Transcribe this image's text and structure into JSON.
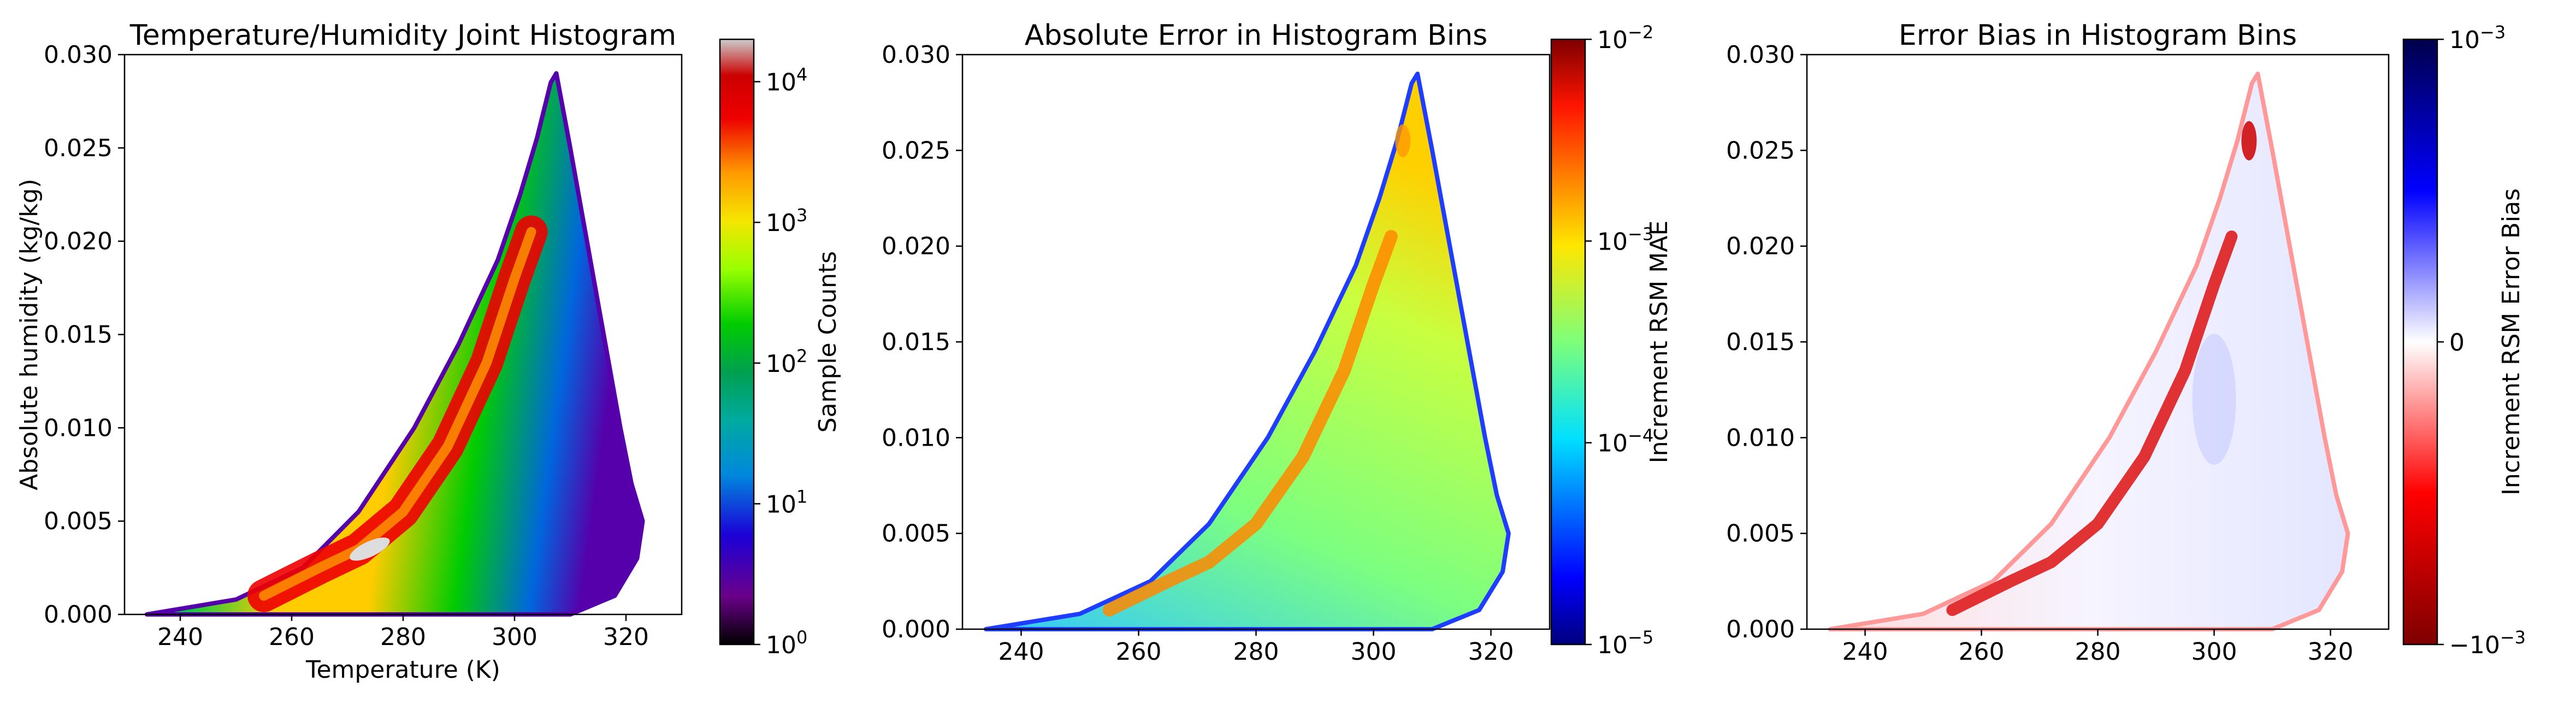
{
  "figure": {
    "background": "#ffffff"
  },
  "chart_data": [
    {
      "type": "heatmap",
      "title": "Temperature/Humidity Joint Histogram",
      "xlabel": "Temperature (K)",
      "ylabel": "Absolute humidity (kg/kg)",
      "xlim": [
        230,
        330
      ],
      "ylim": [
        0.0,
        0.03
      ],
      "xticks": [
        "240",
        "260",
        "280",
        "300",
        "320"
      ],
      "xtick_values": [
        240,
        260,
        280,
        300,
        320
      ],
      "yticks": [
        "0.000",
        "0.005",
        "0.010",
        "0.015",
        "0.020",
        "0.025",
        "0.030"
      ],
      "ytick_values": [
        0.0,
        0.005,
        0.01,
        0.015,
        0.02,
        0.025,
        0.03
      ],
      "grid": false,
      "colormap": "nipy_spectral",
      "colorbar": {
        "label": "Sample Counts",
        "scale": "log",
        "range": [
          1,
          20000
        ],
        "ticks": [
          {
            "base": "10",
            "exp": "0",
            "value": 1
          },
          {
            "base": "10",
            "exp": "1",
            "value": 10
          },
          {
            "base": "10",
            "exp": "2",
            "value": 100
          },
          {
            "base": "10",
            "exp": "3",
            "value": 1000
          },
          {
            "base": "10",
            "exp": "4",
            "value": 10000
          }
        ]
      },
      "envelope": {
        "upper": [
          [
            234,
            0.0
          ],
          [
            250,
            0.0008
          ],
          [
            262,
            0.0025
          ],
          [
            272,
            0.0055
          ],
          [
            282,
            0.01
          ],
          [
            290,
            0.0145
          ],
          [
            297,
            0.019
          ],
          [
            301,
            0.0225
          ],
          [
            304,
            0.0255
          ],
          [
            306.5,
            0.0285
          ],
          [
            307.5,
            0.029
          ]
        ],
        "lower": [
          [
            307.5,
            0.029
          ],
          [
            310,
            0.025
          ],
          [
            313,
            0.02
          ],
          [
            316,
            0.015
          ],
          [
            319,
            0.01
          ],
          [
            321,
            0.007
          ],
          [
            323,
            0.005
          ],
          [
            322,
            0.003
          ],
          [
            318,
            0.001
          ],
          [
            310,
            0.0
          ],
          [
            234,
            0.0
          ]
        ]
      },
      "ridge": [
        [
          255,
          0.001
        ],
        [
          265,
          0.0025
        ],
        [
          272,
          0.0035
        ],
        [
          280,
          0.0055
        ],
        [
          288,
          0.009
        ],
        [
          295,
          0.0135
        ],
        [
          300,
          0.018
        ],
        [
          303,
          0.0205
        ]
      ]
    },
    {
      "type": "heatmap",
      "title": "Absolute Error in Histogram Bins",
      "xlabel": "",
      "ylabel": "",
      "xlim": [
        230,
        330
      ],
      "ylim": [
        0.0,
        0.03
      ],
      "xticks": [
        "240",
        "260",
        "280",
        "300",
        "320"
      ],
      "xtick_values": [
        240,
        260,
        280,
        300,
        320
      ],
      "yticks": [
        "0.000",
        "0.005",
        "0.010",
        "0.015",
        "0.020",
        "0.025",
        "0.030"
      ],
      "ytick_values": [
        0.0,
        0.005,
        0.01,
        0.015,
        0.02,
        0.025,
        0.03
      ],
      "grid": false,
      "colormap": "jet",
      "colorbar": {
        "label": "Increment RSM MAE",
        "scale": "log",
        "range": [
          1e-05,
          0.01
        ],
        "ticks": [
          {
            "base": "10",
            "exp": "−5",
            "value": 1e-05
          },
          {
            "base": "10",
            "exp": "−4",
            "value": 0.0001
          },
          {
            "base": "10",
            "exp": "−3",
            "value": 0.001
          },
          {
            "base": "10",
            "exp": "−2",
            "value": 0.01
          }
        ]
      }
    },
    {
      "type": "heatmap",
      "title": "Error Bias in Histogram Bins",
      "xlabel": "",
      "ylabel": "",
      "xlim": [
        230,
        330
      ],
      "ylim": [
        0.0,
        0.03
      ],
      "xticks": [
        "240",
        "260",
        "280",
        "300",
        "320"
      ],
      "xtick_values": [
        240,
        260,
        280,
        300,
        320
      ],
      "yticks": [
        "0.000",
        "0.005",
        "0.010",
        "0.015",
        "0.020",
        "0.025",
        "0.030"
      ],
      "ytick_values": [
        0.0,
        0.005,
        0.01,
        0.015,
        0.02,
        0.025,
        0.03
      ],
      "grid": false,
      "colormap": "seismic_r",
      "colorbar": {
        "label": "Increment RSM Error Bias",
        "scale": "symlog",
        "range": [
          -0.001,
          0.001
        ],
        "ticks": [
          {
            "text": "10",
            "exp": "−3",
            "value": 0.001
          },
          {
            "text": "0",
            "exp": "",
            "value": 0
          },
          {
            "text": "−10",
            "exp": "−3",
            "value": -0.001
          }
        ]
      }
    }
  ]
}
